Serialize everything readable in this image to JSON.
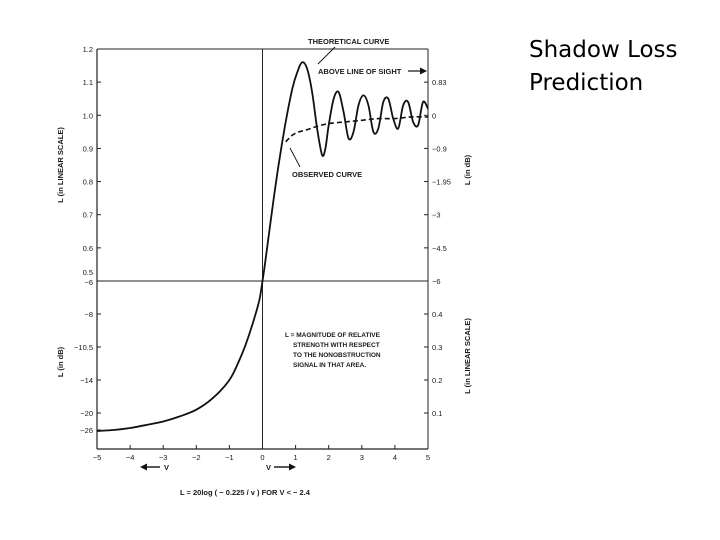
{
  "slide": {
    "title": "Shadow Loss\nPrediction"
  },
  "chart_data": {
    "type": "line",
    "annotations": {
      "theoretical": "THEORETICAL CURVE",
      "above_los": "ABOVE LINE OF SIGHT",
      "observed": "OBSERVED CURVE",
      "note": [
        "L = MAGNITUDE OF RELATIVE",
        "STRENGTH WITH RESPECT",
        "TO THE NONOBSTRUCTION",
        "SIGNAL IN THAT AREA."
      ],
      "formula": "L = 20log ( − 0.225 / v )   FOR V < − 2.4",
      "v_left": "V",
      "v_right": "V"
    },
    "axes": {
      "left_upper_label": "L (in LINEAR SCALE)",
      "left_lower_label": "L (in dB)",
      "right_upper_label": "L (in dB)",
      "right_lower_label": "L (in LINEAR SCALE)",
      "x_ticks": [
        "−5",
        "−4",
        "−3",
        "−2",
        "−1",
        "0",
        "1",
        "2",
        "3",
        "4",
        "5"
      ],
      "left_upper_ticks": [
        {
          "t": "1.2",
          "v": 1.2
        },
        {
          "t": "1.1",
          "v": 1.1
        },
        {
          "t": "1.0",
          "v": 1.0
        },
        {
          "t": "0.9",
          "v": 0.9
        },
        {
          "t": "0.8",
          "v": 0.8
        },
        {
          "t": "0.7",
          "v": 0.7
        },
        {
          "t": "0.6",
          "v": 0.6
        },
        {
          "t": "0.5",
          "v": 0.5
        }
      ],
      "left_lower_ticks": [
        {
          "t": "−6",
          "v": 0.5
        },
        {
          "t": "−8",
          "v": 0.4
        },
        {
          "t": "−10.5",
          "v": 0.3
        },
        {
          "t": "−14",
          "v": 0.2
        },
        {
          "t": "−20",
          "v": 0.1
        },
        {
          "t": "−26",
          "v": 0.05
        }
      ],
      "right_upper_ticks": [
        {
          "t": "0.83",
          "v": 1.1
        },
        {
          "t": "0",
          "v": 1.0
        },
        {
          "t": "−0.9",
          "v": 0.9
        },
        {
          "t": "−1.95",
          "v": 0.8
        },
        {
          "t": "−3",
          "v": 0.7
        },
        {
          "t": "−4.5",
          "v": 0.6
        },
        {
          "t": "−6",
          "v": 0.5
        }
      ],
      "right_lower_ticks": [
        {
          "t": "0.4",
          "v": 0.4
        },
        {
          "t": "0.3",
          "v": 0.3
        },
        {
          "t": "0.2",
          "v": 0.2
        },
        {
          "t": "0.1",
          "v": 0.1
        }
      ],
      "xlim": [
        -5,
        5
      ],
      "ylim": [
        0.05,
        1.2
      ]
    },
    "series": [
      {
        "name": "THEORETICAL CURVE",
        "style": "solid",
        "x": [
          -5.0,
          -4.5,
          -4.0,
          -3.5,
          -3.0,
          -2.5,
          -2.0,
          -1.5,
          -1.0,
          -0.7,
          -0.5,
          -0.3,
          -0.1,
          0.0,
          0.1,
          0.3,
          0.5,
          0.7,
          0.9,
          1.05,
          1.2,
          1.35,
          1.5,
          1.65,
          1.8,
          1.9,
          2.0,
          2.15,
          2.3,
          2.45,
          2.6,
          2.75,
          2.9,
          3.05,
          3.2,
          3.35,
          3.5,
          3.65,
          3.8,
          3.95,
          4.1,
          4.25,
          4.4,
          4.55,
          4.7,
          4.85,
          5.0
        ],
        "y": [
          0.045,
          0.05,
          0.056,
          0.065,
          0.075,
          0.09,
          0.11,
          0.145,
          0.2,
          0.26,
          0.31,
          0.37,
          0.44,
          0.5,
          0.57,
          0.72,
          0.86,
          0.98,
          1.08,
          1.13,
          1.16,
          1.14,
          1.07,
          0.96,
          0.88,
          0.9,
          0.97,
          1.05,
          1.07,
          1.01,
          0.93,
          0.95,
          1.03,
          1.06,
          1.03,
          0.95,
          0.96,
          1.04,
          1.05,
          0.99,
          0.96,
          1.03,
          1.04,
          0.98,
          0.97,
          1.04,
          1.02
        ]
      },
      {
        "name": "OBSERVED CURVE",
        "style": "dashed",
        "x": [
          0.7,
          0.9,
          1.1,
          1.3,
          1.6,
          2.0,
          2.5,
          3.0,
          3.5,
          4.0,
          4.5,
          5.0
        ],
        "y": [
          0.92,
          0.94,
          0.95,
          0.955,
          0.965,
          0.975,
          0.98,
          0.985,
          0.99,
          0.99,
          0.995,
          0.995
        ]
      }
    ]
  }
}
